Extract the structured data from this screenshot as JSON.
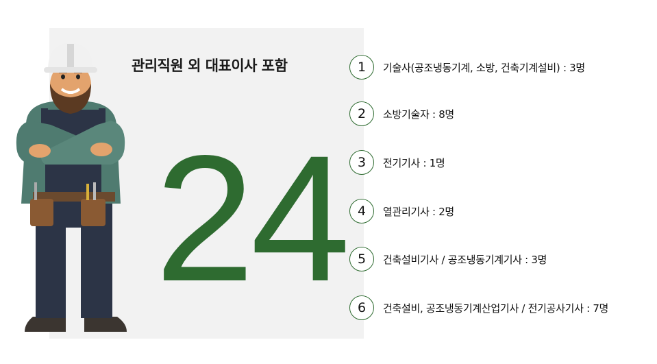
{
  "title": "관리직원 외 대표이사 포함",
  "total": "24",
  "accent_color": "#2e6b30",
  "illustration": "construction-worker",
  "items": [
    {
      "num": "1",
      "label": "기술사(공조냉동기계, 소방, 건축기계설비) : 3명"
    },
    {
      "num": "2",
      "label": "소방기술자 : 8명"
    },
    {
      "num": "3",
      "label": "전기기사 : 1명"
    },
    {
      "num": "4",
      "label": "열관리기사 : 2명"
    },
    {
      "num": "5",
      "label": "건축설비기사 / 공조냉동기계기사 : 3명"
    },
    {
      "num": "6",
      "label": "건축설비, 공조냉동기계산업기사 / 전기공사기사 : 7명"
    }
  ]
}
